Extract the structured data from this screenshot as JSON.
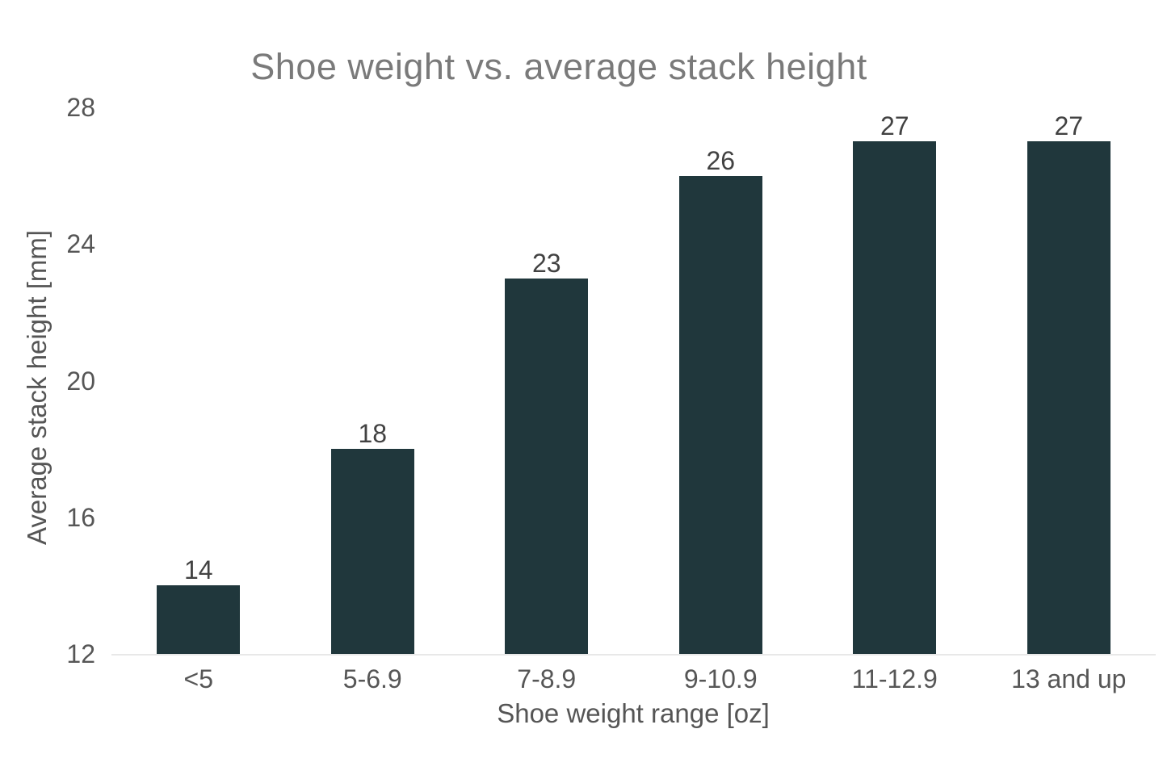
{
  "chart_data": {
    "type": "bar",
    "title": "Shoe weight vs. average stack height",
    "categories": [
      "<5",
      "5-6.9",
      "7-8.9",
      "9-10.9",
      "11-12.9",
      "13 and up"
    ],
    "values": [
      14,
      18,
      23,
      26,
      27,
      27
    ],
    "xlabel": "Shoe weight range [oz]",
    "ylabel": "Average stack height [mm]",
    "ylim": [
      12,
      28
    ],
    "yticks": [
      12,
      16,
      20,
      24,
      28
    ],
    "grid": false,
    "legend_position": "none",
    "value_labels_shown": true,
    "colors": {
      "bar": "#20373C",
      "title": "#7A7A7A",
      "tick_label": "#565656",
      "axis_title": "#555555",
      "value_label": "#424242",
      "axis_line": "#E8E8E8",
      "background": "#FFFFFF"
    }
  }
}
